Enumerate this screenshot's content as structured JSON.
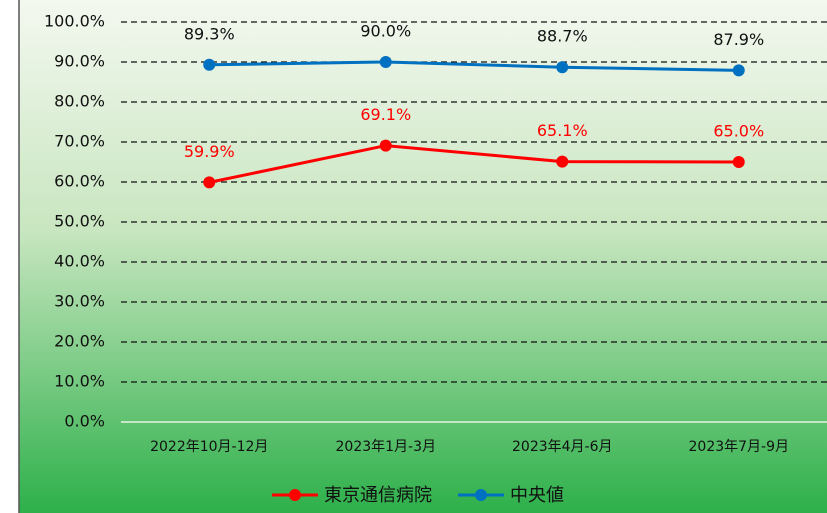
{
  "chart_data": {
    "type": "line",
    "categories": [
      "2022年10月-12月",
      "2023年1月-3月",
      "2023年4月-6月",
      "2023年7月-9月"
    ],
    "series": [
      {
        "name": "東京通信病院",
        "color": "#ff0000",
        "values": [
          59.9,
          69.1,
          65.1,
          65.0
        ],
        "value_labels": [
          "59.9%",
          "69.1%",
          "65.1%",
          "65.0%"
        ]
      },
      {
        "name": "中央値",
        "color": "#0070c0",
        "values": [
          89.3,
          90.0,
          88.7,
          87.9
        ],
        "value_labels": [
          "89.3%",
          "90.0%",
          "88.7%",
          "87.9%"
        ]
      }
    ],
    "ylim": [
      0,
      100
    ],
    "yticks": [
      {
        "value": 0,
        "label": "0.0%"
      },
      {
        "value": 10,
        "label": "10.0%"
      },
      {
        "value": 20,
        "label": "20.0%"
      },
      {
        "value": 30,
        "label": "30.0%"
      },
      {
        "value": 40,
        "label": "40.0%"
      },
      {
        "value": 50,
        "label": "50.0%"
      },
      {
        "value": 60,
        "label": "60.0%"
      },
      {
        "value": 70,
        "label": "70.0%"
      },
      {
        "value": 80,
        "label": "80.0%"
      },
      {
        "value": 90,
        "label": "90.0%"
      },
      {
        "value": 100,
        "label": "100.0%"
      }
    ],
    "grid": true,
    "legend": "bottom"
  }
}
